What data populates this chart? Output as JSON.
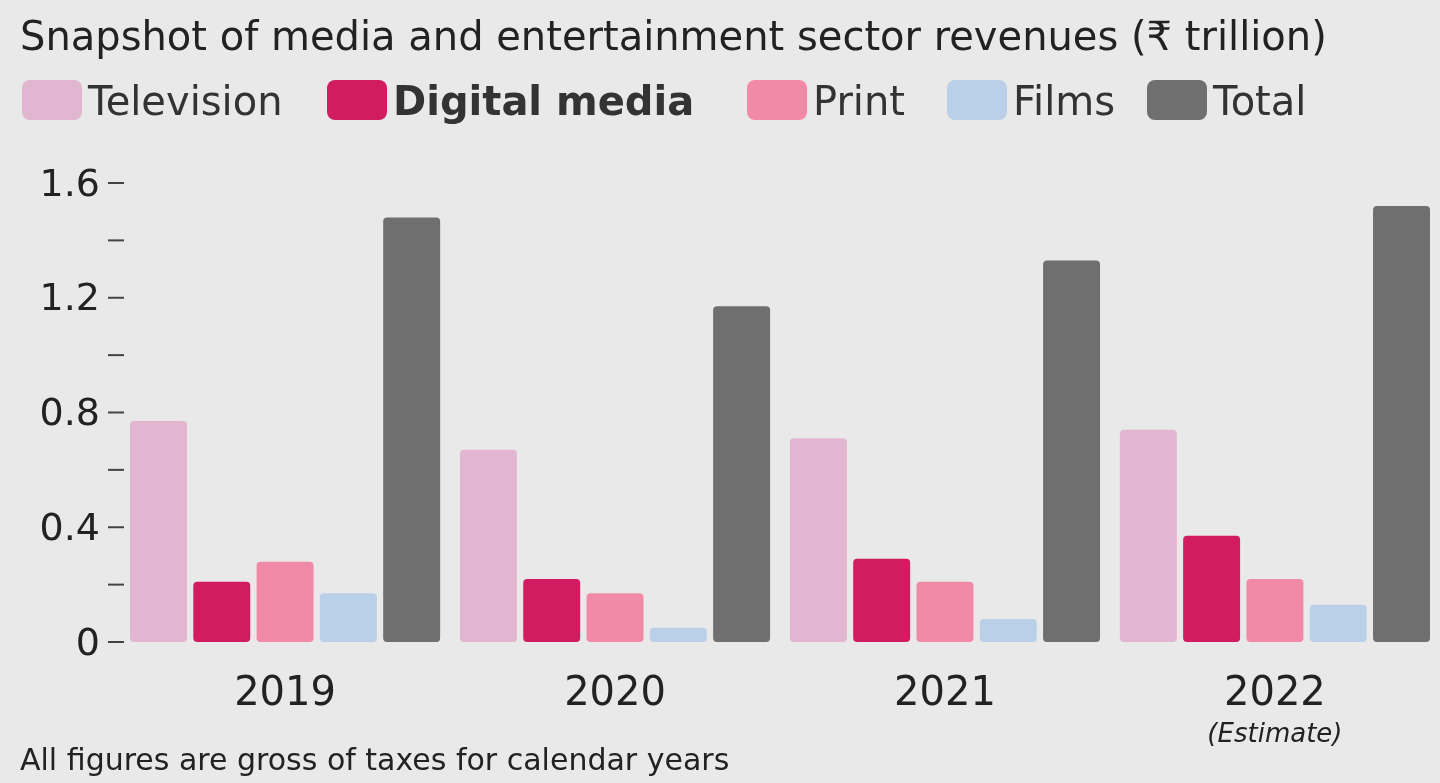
{
  "chart_data": {
    "type": "bar",
    "title": "Snapshot of media and entertainment sector revenues (₹ trillion)",
    "categories": [
      "2019",
      "2020",
      "2021",
      "2022"
    ],
    "series": [
      {
        "name": "Television",
        "color": "#e2b6d0",
        "values": [
          0.77,
          0.67,
          0.71,
          0.74
        ]
      },
      {
        "name": "Digital media",
        "color": "#d21c62",
        "values": [
          0.21,
          0.22,
          0.29,
          0.37
        ]
      },
      {
        "name": "Print",
        "color": "#f08aa6",
        "values": [
          0.28,
          0.17,
          0.21,
          0.22
        ]
      },
      {
        "name": "Films",
        "color": "#b9d0e8",
        "values": [
          0.17,
          0.05,
          0.08,
          0.13
        ]
      },
      {
        "name": "Total",
        "color": "#6f6f6f",
        "values": [
          1.48,
          1.17,
          1.33,
          1.52
        ]
      }
    ],
    "ylim": [
      0,
      1.6
    ],
    "yticks": [
      0,
      {
        "value": 0.2,
        "label": null
      },
      0.4,
      {
        "value": 0.6,
        "label": null
      },
      0.8,
      {
        "value": 1.0,
        "label": null
      },
      1.2,
      {
        "value": 1.4,
        "label": null
      },
      1.6
    ],
    "legend": "top",
    "grid": false,
    "annotations": [
      "(Estimate)",
      "All figures are gross of taxes for calendar years"
    ]
  }
}
